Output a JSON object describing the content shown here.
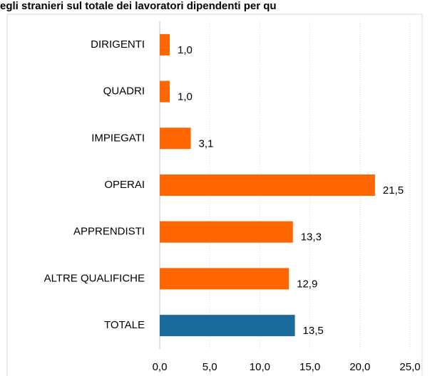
{
  "chart_data": {
    "type": "barh",
    "title": "egli stranieri sul totale dei lavoratori dipendenti per qu",
    "categories": [
      "DIRIGENTI",
      "QUADRI",
      "IMPIEGATI",
      "OPERAI",
      "APPRENDISTI",
      "ALTRE QUALIFICHE",
      "TOTALE"
    ],
    "values": [
      1.0,
      1.0,
      3.1,
      21.5,
      13.3,
      12.9,
      13.5
    ],
    "value_labels": [
      "1,0",
      "1,0",
      "3,1",
      "21,5",
      "13,3",
      "12,9",
      "13,5"
    ],
    "colors": [
      "#ff6600",
      "#ff6600",
      "#ff6600",
      "#ff6600",
      "#ff6600",
      "#ff6600",
      "#1b6a9c"
    ],
    "xlim": [
      0,
      25
    ],
    "xticks": [
      {
        "value": 0,
        "label": "0,0"
      },
      {
        "value": 5,
        "label": "5,0"
      },
      {
        "value": 10,
        "label": "10,0"
      },
      {
        "value": 15,
        "label": "15,0"
      },
      {
        "value": 20,
        "label": "20,0"
      },
      {
        "value": 25,
        "label": "25,0"
      }
    ],
    "grid": true
  }
}
